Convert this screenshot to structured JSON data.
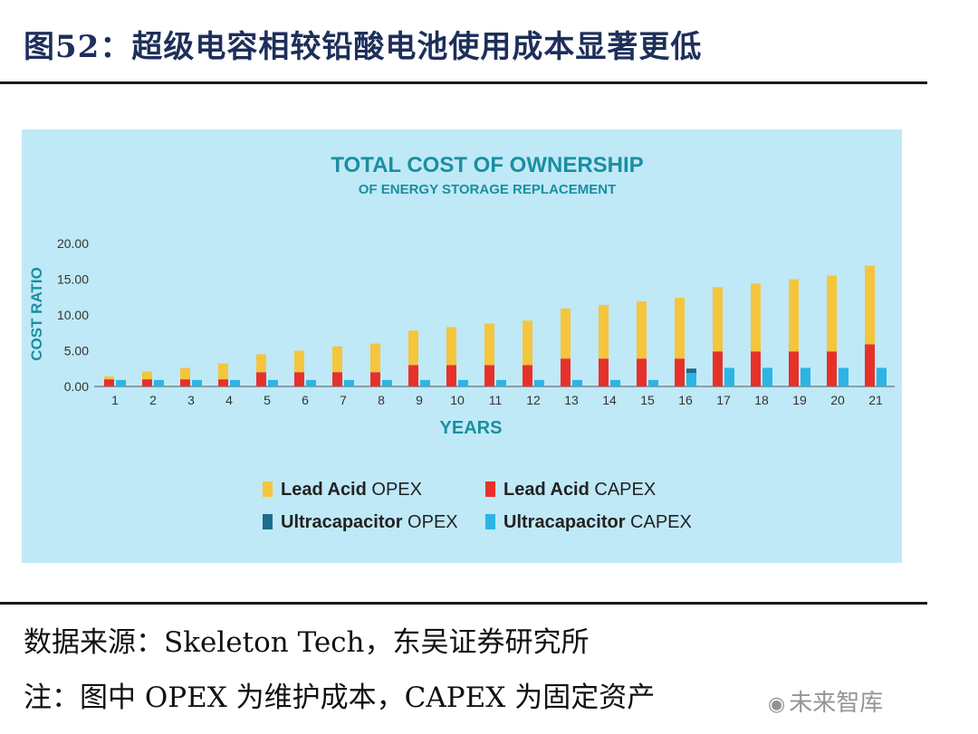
{
  "figure_title": "图52：超级电容相较铅酸电池使用成本显著更低",
  "source_text": "数据来源：Skeleton Tech，东吴证券研究所",
  "note_text": "注：图中 OPEX 为维护成本，CAPEX 为固定资产",
  "watermark": {
    "icon": "camera-icon",
    "text": "未来智库"
  },
  "colors": {
    "panel_bg": "#bfe9f7",
    "title": "#1a8fa0",
    "lead_acid_opex": "#f5c53c",
    "lead_acid_capex": "#e8302a",
    "ultracap_opex": "#1e6c8c",
    "ultracap_capex": "#2bb5e4",
    "axis_text": "#333333",
    "axis_title": "#1a8fa0"
  },
  "chart_data": {
    "type": "bar",
    "title": "TOTAL COST OF OWNERSHIP",
    "subtitle": "OF ENERGY STORAGE REPLACEMENT",
    "xlabel": "YEARS",
    "ylabel": "COST RATIO",
    "ylim": [
      0,
      20
    ],
    "yticks": [
      "0.00",
      "5.00",
      "10.00",
      "15.00",
      "20.00"
    ],
    "grid": false,
    "legend_position": "bottom",
    "categories": [
      "1",
      "2",
      "3",
      "4",
      "5",
      "6",
      "7",
      "8",
      "9",
      "10",
      "11",
      "12",
      "13",
      "14",
      "15",
      "16",
      "17",
      "18",
      "19",
      "20",
      "21"
    ],
    "stacked": true,
    "series": [
      {
        "name": "Lead Acid OPEX",
        "name_bold": "Lead Acid",
        "name_rest": " OPEX",
        "group": "lead_acid",
        "color_key": "lead_acid_opex",
        "values": [
          0.4,
          1.1,
          1.6,
          2.2,
          2.5,
          3.0,
          3.6,
          4.0,
          4.8,
          5.3,
          5.8,
          6.2,
          7.0,
          7.5,
          8.0,
          8.5,
          9.0,
          9.5,
          10.1,
          10.6,
          11.0
        ]
      },
      {
        "name": "Lead Acid CAPEX",
        "name_bold": "Lead Acid",
        "name_rest": " CAPEX",
        "group": "lead_acid",
        "color_key": "lead_acid_capex",
        "values": [
          1.0,
          1.0,
          1.0,
          1.0,
          2.0,
          2.0,
          2.0,
          2.0,
          3.0,
          3.0,
          3.0,
          3.0,
          3.9,
          3.9,
          3.9,
          3.9,
          4.9,
          4.9,
          4.9,
          4.9,
          5.9
        ]
      },
      {
        "name": "Ultracapacitor OPEX",
        "name_bold": "Ultracapacitor",
        "name_rest": " OPEX",
        "group": "ultracap",
        "color_key": "ultracap_opex",
        "values": [
          0,
          0,
          0,
          0,
          0,
          0,
          0,
          0,
          0,
          0,
          0,
          0,
          0,
          0,
          0,
          0.6,
          0,
          0,
          0,
          0,
          0
        ]
      },
      {
        "name": "Ultracapacitor CAPEX",
        "name_bold": "Ultracapacitor",
        "name_rest": " CAPEX",
        "group": "ultracap",
        "color_key": "ultracap_capex",
        "values": [
          0.9,
          0.9,
          0.9,
          0.9,
          0.9,
          0.9,
          0.9,
          0.9,
          0.9,
          0.9,
          0.9,
          0.9,
          0.9,
          0.9,
          0.9,
          1.9,
          2.6,
          2.6,
          2.6,
          2.6,
          2.6
        ]
      }
    ]
  }
}
